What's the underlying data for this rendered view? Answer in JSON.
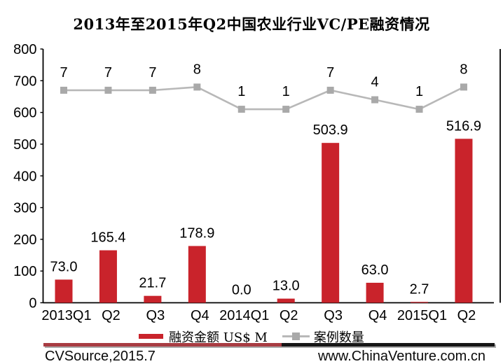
{
  "title": "2013年至2015年Q2中国农业行业VC/PE融资情况",
  "legend": {
    "bar_label": "融资金额 US$ M",
    "line_label": "案例数量"
  },
  "footer": {
    "source": "CVSource,2015.7",
    "website": "www.ChinaVenture.com.cn"
  },
  "colors": {
    "bar": "#C9232B",
    "line": "#B8B8B8",
    "marker": "#A9A9A9",
    "axis": "#000000",
    "text": "#000000",
    "separator_left": "#A83C42",
    "separator_right": "#161616",
    "separator_shadow": "#ABABAB",
    "background": "#FFFFFF"
  },
  "chart_data": {
    "type": "bar",
    "subtype": "combo bar+line, legend at bottom, no gridlines",
    "title": "2013年至2015年Q2中国农业行业VC/PE融资情况",
    "categories": [
      "2013Q1",
      "Q2",
      "Q3",
      "Q4",
      "2014Q1",
      "Q2",
      "Q3",
      "Q4",
      "2015Q1",
      "Q2"
    ],
    "series": [
      {
        "name": "融资金额 US$ M",
        "type": "bar",
        "values": [
          73.0,
          165.4,
          21.7,
          178.9,
          0.0,
          13.0,
          503.9,
          63.0,
          2.7,
          516.9
        ],
        "value_format": "1dp"
      },
      {
        "name": "案例数量",
        "type": "line",
        "values": [
          7,
          7,
          7,
          8,
          1,
          1,
          7,
          4,
          1,
          8
        ],
        "value_format": "int"
      }
    ],
    "xlabel": "",
    "ylabel": "",
    "ylim": [
      0,
      800
    ],
    "ytick_step": 100,
    "grid": false,
    "legend_position": "bottom",
    "line_plot_mapping": {
      "comment": "line markers are drawn against the left axis at offset + factor × value",
      "offset": 600,
      "factor": 10
    }
  }
}
